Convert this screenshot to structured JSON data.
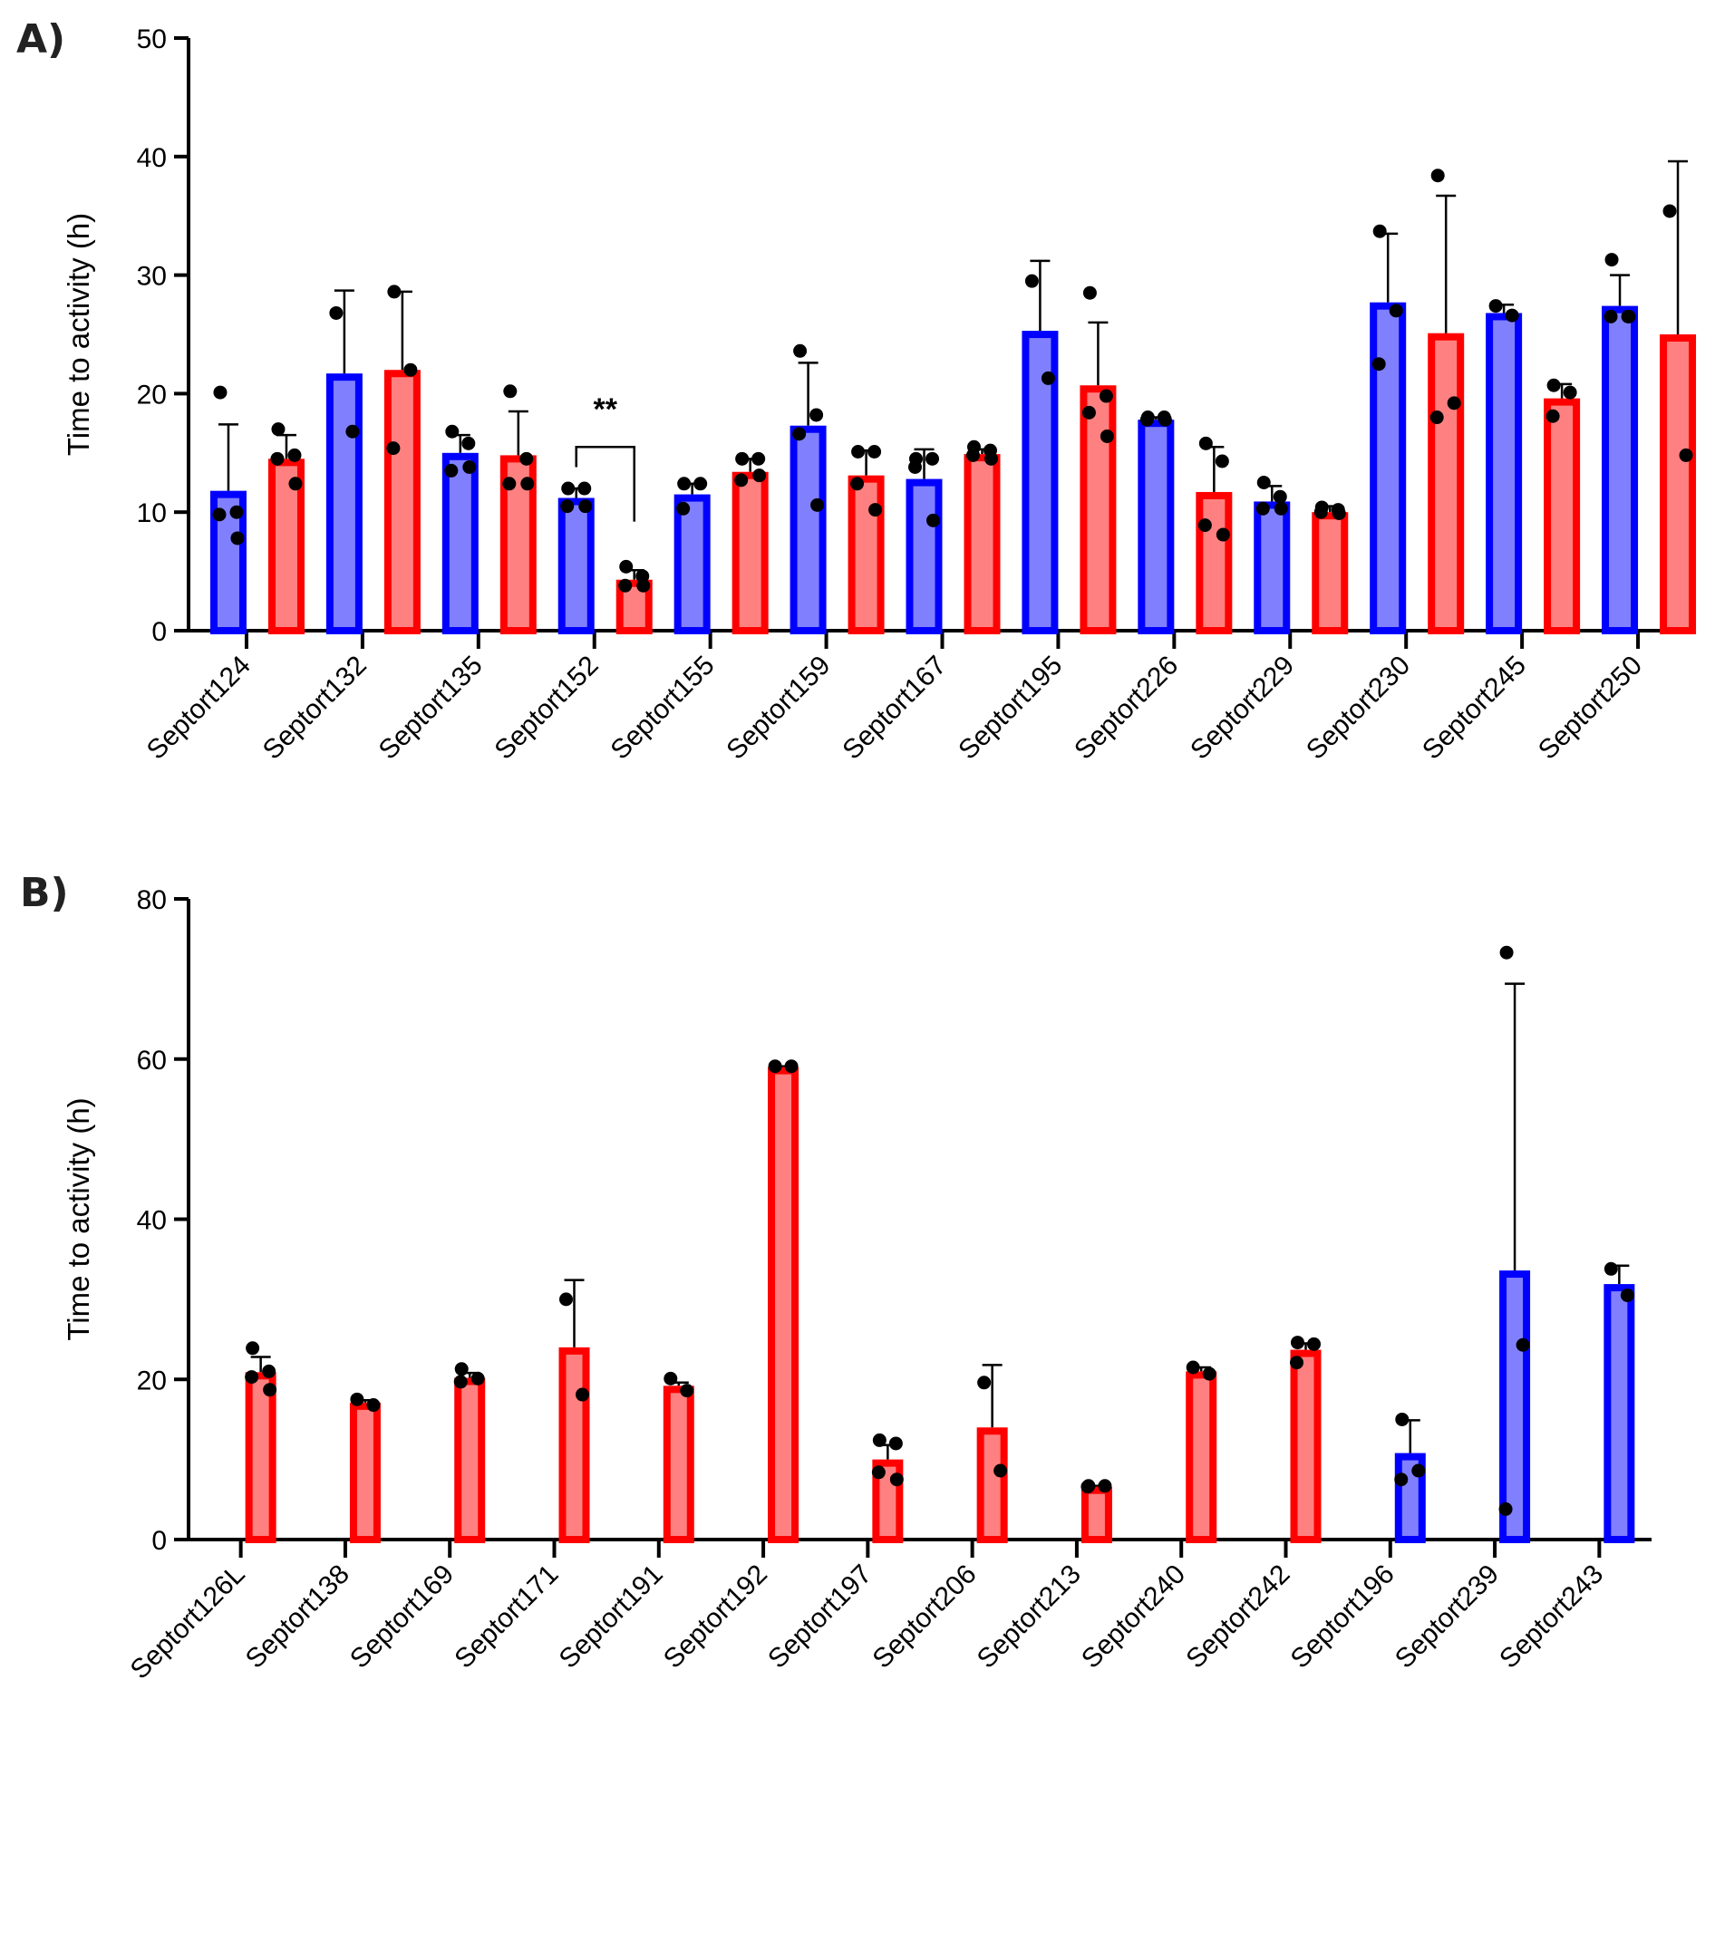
{
  "figure": {
    "panels": [
      "A)",
      "B)"
    ]
  },
  "colors": {
    "blue_stroke": "#0000ff",
    "blue_fill": "#8080ff",
    "red_stroke": "#ff0000",
    "red_fill": "#ff8080",
    "point": "#000000"
  },
  "chart_data": [
    {
      "type": "bar",
      "panel": "A)",
      "title": "",
      "xlabel": "",
      "ylabel": "Time to activity (h)",
      "ylim": [
        0,
        50
      ],
      "yticks": [
        0,
        10,
        20,
        30,
        40,
        50
      ],
      "grid": false,
      "categories": [
        "Septort124",
        "Septort132",
        "Septort135",
        "Septort152",
        "Septort155",
        "Septort159",
        "Septort167",
        "Septort195",
        "Septort226",
        "Septort229",
        "Septort230",
        "Septort245",
        "Septort250"
      ],
      "series": [
        {
          "name": "blue",
          "color": "blue",
          "values": [
            11.8,
            21.7,
            15.0,
            11.2,
            11.5,
            17.3,
            12.8,
            25.3,
            17.8,
            10.9,
            27.7,
            26.8,
            27.4
          ],
          "error_upper": [
            17.4,
            28.7,
            16.5,
            12.0,
            12.4,
            22.6,
            15.3,
            31.2,
            18.0,
            12.2,
            33.5,
            27.5,
            30.0
          ],
          "points": [
            [
              20.1,
              10.0,
              9.8,
              7.8
            ],
            [
              26.8,
              16.8
            ],
            [
              16.8,
              15.8,
              13.5,
              13.8
            ],
            [
              12.0,
              12.0,
              10.5,
              10.5
            ],
            [
              12.4,
              12.4,
              10.3
            ],
            [
              23.6,
              18.2,
              16.6,
              10.6
            ],
            [
              14.5,
              14.5,
              13.8,
              9.3
            ],
            [
              29.5,
              21.3
            ],
            [
              18.0,
              18.0,
              17.8,
              17.8
            ],
            [
              12.5,
              11.3,
              10.3,
              10.3
            ],
            [
              33.7,
              27.0,
              22.5
            ],
            [
              27.4,
              26.6
            ],
            [
              31.3,
              26.5,
              26.5,
              26.5
            ]
          ]
        },
        {
          "name": "red",
          "color": "red",
          "values": [
            14.5,
            22.0,
            14.8,
            4.3,
            13.4,
            13.1,
            14.9,
            20.7,
            11.7,
            10.0,
            25.1,
            19.6,
            25.0
          ],
          "error_upper": [
            16.5,
            28.6,
            18.5,
            5.1,
            14.5,
            15.2,
            15.3,
            26.0,
            15.5,
            10.5,
            36.7,
            20.8,
            39.6
          ],
          "points": [
            [
              17.0,
              14.8,
              14.5,
              12.4
            ],
            [
              28.6,
              22.0,
              15.4
            ],
            [
              20.2,
              14.5,
              12.4,
              12.4
            ],
            [
              5.4,
              4.6,
              3.8,
              3.8
            ],
            [
              14.5,
              14.5,
              12.7,
              13.1
            ],
            [
              15.1,
              15.1,
              12.4,
              10.2
            ],
            [
              15.5,
              15.2,
              14.8,
              14.5
            ],
            [
              28.5,
              19.8,
              18.4,
              16.4
            ],
            [
              15.8,
              14.3,
              8.9,
              8.1
            ],
            [
              10.4,
              10.2,
              10.0,
              9.9
            ],
            [
              38.4,
              19.2,
              18.0
            ],
            [
              20.7,
              20.1,
              18.1
            ],
            [
              35.4,
              14.8
            ]
          ]
        }
      ],
      "annotations": [
        {
          "text": "**",
          "category": "Septort152",
          "bracket_between": [
            "blue",
            "red"
          ]
        }
      ]
    },
    {
      "type": "bar",
      "panel": "B)",
      "title": "",
      "xlabel": "",
      "ylabel": "Time to activity (h)",
      "ylim": [
        0,
        80
      ],
      "yticks": [
        0,
        20,
        40,
        60,
        80
      ],
      "grid": false,
      "categories": [
        "Septort126L",
        "Septort138",
        "Septort169",
        "Septort171",
        "Septort191",
        "Septort192",
        "Septort197",
        "Septort206",
        "Septort213",
        "Septort240",
        "Septort242",
        "Septort196",
        "Septort239",
        "Septort243"
      ],
      "bar_colors": [
        "red",
        "red",
        "red",
        "red",
        "red",
        "red",
        "red",
        "red",
        "red",
        "red",
        "red",
        "blue",
        "blue",
        "blue"
      ],
      "values": [
        20.9,
        17.1,
        20.2,
        24.0,
        19.2,
        59.0,
        10.0,
        14.0,
        6.6,
        21.0,
        23.7,
        10.8,
        33.6,
        31.9
      ],
      "error_upper": [
        22.8,
        17.4,
        20.8,
        32.4,
        19.6,
        59.1,
        11.8,
        21.8,
        6.7,
        21.5,
        24.5,
        14.9,
        69.4,
        34.2
      ],
      "points": [
        [
          23.9,
          21.0,
          20.3,
          18.7
        ],
        [
          17.5,
          16.8
        ],
        [
          21.3,
          20.1,
          19.7
        ],
        [
          30.0,
          18.1
        ],
        [
          20.1,
          18.6
        ],
        [
          59.1,
          59.1
        ],
        [
          12.4,
          12.0,
          8.4,
          7.5
        ],
        [
          19.6,
          8.6
        ],
        [
          6.7,
          6.7,
          6.6
        ],
        [
          21.5,
          20.7
        ],
        [
          24.6,
          24.4,
          22.1
        ],
        [
          15.0,
          8.6,
          7.5
        ],
        [
          73.3,
          24.3,
          3.8
        ],
        [
          33.8,
          30.5
        ]
      ]
    }
  ]
}
